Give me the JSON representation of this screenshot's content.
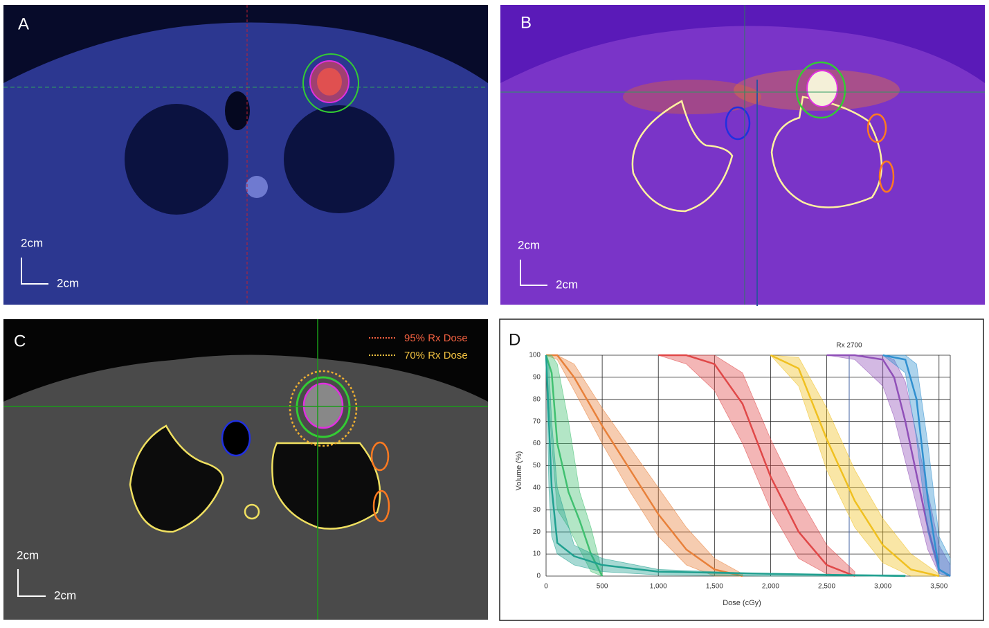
{
  "panels": {
    "a": {
      "label": "A",
      "scale_y": "2cm",
      "scale_x": "2cm"
    },
    "b": {
      "label": "B",
      "scale_y": "2cm",
      "scale_x": "2cm"
    },
    "c": {
      "label": "C",
      "scale_y": "2cm",
      "scale_x": "2cm",
      "legend": [
        "95% Rx Dose",
        "70% Rx Dose"
      ]
    }
  },
  "chart_data": {
    "type": "line",
    "label": "D",
    "x_label": "Dose (cGy)",
    "y_label": "Volume (%)",
    "xlim": [
      0,
      3600
    ],
    "ylim": [
      0,
      100
    ],
    "xticks": [
      0,
      500,
      {
        "value": 1000,
        "label": "1,000"
      },
      {
        "value": 1500,
        "label": "1,500"
      },
      {
        "value": 2000,
        "label": "2,000"
      },
      {
        "value": 2500,
        "label": "2,500"
      },
      {
        "value": 3000,
        "label": "3,000"
      },
      {
        "value": 3500,
        "label": "3,500"
      }
    ],
    "yticks": [
      0,
      10,
      20,
      30,
      40,
      50,
      60,
      70,
      80,
      90,
      100
    ],
    "grid": true,
    "rx_line": {
      "label": "Rx 2700",
      "value": 2700
    },
    "series": [
      {
        "color": "#e8803a",
        "x": [
          0,
          100,
          250,
          500,
          750,
          1000,
          1250,
          1500,
          1750
        ],
        "values": [
          100,
          100,
          90,
          68,
          48,
          28,
          12,
          3,
          0
        ],
        "lower": [
          100,
          98,
          84,
          60,
          38,
          18,
          5,
          0,
          0
        ],
        "upper": [
          100,
          100,
          96,
          76,
          58,
          40,
          22,
          8,
          1
        ]
      },
      {
        "color": "#e04848",
        "x": [
          1000,
          1250,
          1500,
          1750,
          2000,
          2250,
          2500,
          2750
        ],
        "values": [
          100,
          100,
          96,
          78,
          45,
          20,
          5,
          0
        ],
        "lower": [
          100,
          96,
          84,
          60,
          30,
          8,
          1,
          0
        ],
        "upper": [
          100,
          100,
          100,
          92,
          62,
          36,
          14,
          2
        ]
      },
      {
        "color": "#f0c020",
        "x": [
          2000,
          2250,
          2500,
          2750,
          3000,
          3250,
          3500
        ],
        "values": [
          100,
          94,
          62,
          34,
          14,
          3,
          0
        ],
        "lower": [
          100,
          86,
          48,
          22,
          6,
          0,
          0
        ],
        "upper": [
          100,
          99,
          76,
          48,
          26,
          10,
          1
        ]
      },
      {
        "color": "#9050b8",
        "x": [
          2500,
          2750,
          3000,
          3100,
          3200,
          3300,
          3400,
          3500,
          3600
        ],
        "values": [
          100,
          100,
          98,
          90,
          70,
          46,
          22,
          3,
          0
        ],
        "lower": [
          100,
          98,
          86,
          72,
          52,
          32,
          12,
          1,
          0
        ],
        "upper": [
          100,
          100,
          100,
          98,
          88,
          64,
          38,
          14,
          5
        ]
      },
      {
        "color": "#3090d0",
        "x": [
          3000,
          3200,
          3300,
          3400,
          3500,
          3600
        ],
        "values": [
          100,
          98,
          80,
          35,
          3,
          0
        ],
        "lower": [
          100,
          92,
          62,
          20,
          1,
          0
        ],
        "upper": [
          100,
          100,
          96,
          60,
          18,
          8
        ]
      },
      {
        "color": "#40c070",
        "x": [
          0,
          50,
          100,
          200,
          300,
          400,
          500
        ],
        "values": [
          100,
          92,
          60,
          38,
          25,
          10,
          0
        ],
        "lower": [
          100,
          60,
          30,
          22,
          12,
          2,
          0
        ],
        "upper": [
          100,
          100,
          96,
          70,
          38,
          22,
          2
        ]
      },
      {
        "color": "#20a090",
        "x": [
          0,
          25,
          50,
          100,
          250,
          500,
          1000,
          2000,
          3200
        ],
        "values": [
          100,
          70,
          40,
          15,
          9,
          5,
          2,
          1,
          0
        ],
        "lower": [
          100,
          40,
          18,
          10,
          5,
          2,
          0.5,
          0,
          0
        ],
        "upper": [
          100,
          95,
          70,
          40,
          14,
          8,
          3,
          1,
          0.5
        ]
      }
    ]
  }
}
